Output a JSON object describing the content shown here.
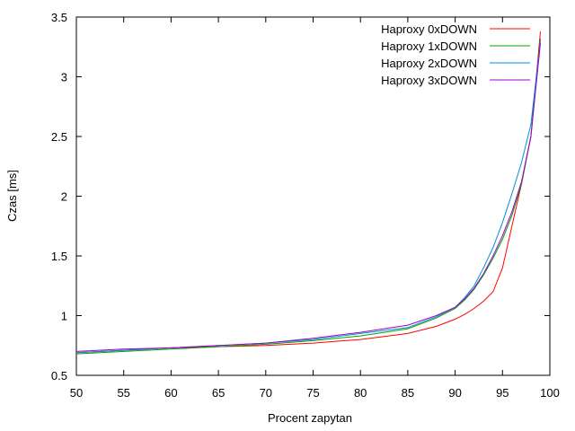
{
  "chart_data": {
    "type": "line",
    "title": "",
    "xlabel": "Procent zapytan",
    "ylabel": "Czas [ms]",
    "xlim": [
      50,
      100
    ],
    "ylim": [
      0.5,
      3.5
    ],
    "xticks": [
      50,
      55,
      60,
      65,
      70,
      75,
      80,
      85,
      90,
      95,
      100
    ],
    "yticks": [
      0.5,
      1,
      1.5,
      2,
      2.5,
      3,
      3.5
    ],
    "xtick_labels": [
      "50",
      "55",
      "60",
      "65",
      "70",
      "75",
      "80",
      "85",
      "90",
      "95",
      "100"
    ],
    "ytick_labels": [
      "0.5",
      "1",
      "1.5",
      "2",
      "2.5",
      "3",
      "3.5"
    ],
    "grid": false,
    "legend_position": "top-right",
    "x": [
      50,
      55,
      60,
      65,
      70,
      75,
      80,
      85,
      88,
      90,
      91,
      92,
      93,
      94,
      95,
      96,
      97,
      98,
      99
    ],
    "series": [
      {
        "name": "Haproxy 0xDOWN",
        "color": "#ff0000",
        "values": [
          0.69,
          0.71,
          0.73,
          0.74,
          0.75,
          0.77,
          0.8,
          0.85,
          0.91,
          0.97,
          1.01,
          1.06,
          1.12,
          1.2,
          1.4,
          1.75,
          2.1,
          2.5,
          3.38
        ]
      },
      {
        "name": "Haproxy 1xDOWN",
        "color": "#00a000",
        "values": [
          0.68,
          0.7,
          0.72,
          0.74,
          0.76,
          0.79,
          0.83,
          0.89,
          0.98,
          1.06,
          1.13,
          1.22,
          1.34,
          1.48,
          1.64,
          1.84,
          2.1,
          2.5,
          3.32
        ]
      },
      {
        "name": "Haproxy 2xDOWN",
        "color": "#0090d0",
        "values": [
          0.69,
          0.71,
          0.73,
          0.75,
          0.77,
          0.8,
          0.85,
          0.9,
          0.99,
          1.07,
          1.15,
          1.25,
          1.4,
          1.57,
          1.78,
          2.02,
          2.28,
          2.6,
          3.3
        ]
      },
      {
        "name": "Haproxy 3xDOWN",
        "color": "#a000d0",
        "values": [
          0.7,
          0.72,
          0.73,
          0.75,
          0.77,
          0.81,
          0.86,
          0.92,
          1.0,
          1.07,
          1.14,
          1.23,
          1.35,
          1.5,
          1.67,
          1.87,
          2.12,
          2.5,
          3.28
        ]
      }
    ]
  }
}
